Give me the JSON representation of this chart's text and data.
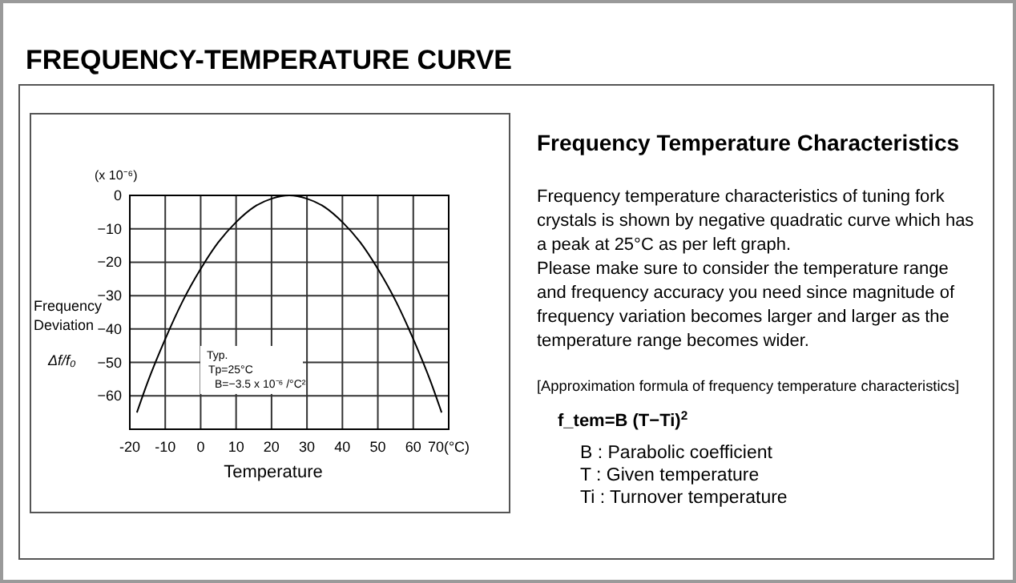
{
  "chart_data": {
    "type": "line",
    "title": "FREQUENCY-TEMPERATURE CURVE",
    "xlabel": "Temperature",
    "ylabel": "Frequency Deviation",
    "x": [
      -18,
      -15,
      -10,
      -5,
      0,
      5,
      10,
      15,
      20,
      25,
      30,
      35,
      40,
      45,
      50,
      55,
      60,
      65,
      68
    ],
    "series": [
      {
        "color": "#000000",
        "values": [
          -65,
          -56,
          -43,
          -31.5,
          -22,
          -14,
          -8,
          -3.5,
          -1,
          0,
          -1,
          -3.5,
          -8,
          -14,
          -22,
          -31.5,
          -43,
          -56,
          -65
        ]
      }
    ],
    "xlim": [
      -20,
      70
    ],
    "xticks": [
      -20,
      -10,
      0,
      10,
      20,
      30,
      40,
      50,
      60,
      {
        "value": 70,
        "label": "70(°C)"
      }
    ],
    "ylim": [
      -70,
      0
    ],
    "yticks": [
      0,
      {
        "value": -10,
        "label": "−10"
      },
      {
        "value": -20,
        "label": "−20"
      },
      {
        "value": -30,
        "label": "−30"
      },
      {
        "value": -40,
        "label": "−40"
      },
      {
        "value": -50,
        "label": "−50"
      },
      {
        "value": -60,
        "label": "−60"
      },
      {
        "value": -70,
        "label": null
      }
    ],
    "grid": true,
    "marker": "none",
    "line_style": "solid",
    "annotations": [
      "(x 10⁻⁶)",
      "Δf/f₀",
      "Typ.",
      "Tp=25°C",
      "B=−3.5 x 10⁻⁶ /°C²",
      "Frequency Temperature Characteristics",
      "Frequency temperature characteristics of tuning fork crystals is shown by negative quadratic curve which has a peak at 25°C as per left graph.",
      "Please make sure to consider the temperature range and frequency accuracy you need since magnitude of frequency variation becomes larger and larger as the temperature range becomes wider.",
      "[Approximation formula of frequency temperature characteristics]",
      "f_tem=B (T−Ti)$^{2}$",
      "B : Parabolic coefficient",
      "T : Given temperature",
      "Ti : Turnover temperature"
    ]
  }
}
